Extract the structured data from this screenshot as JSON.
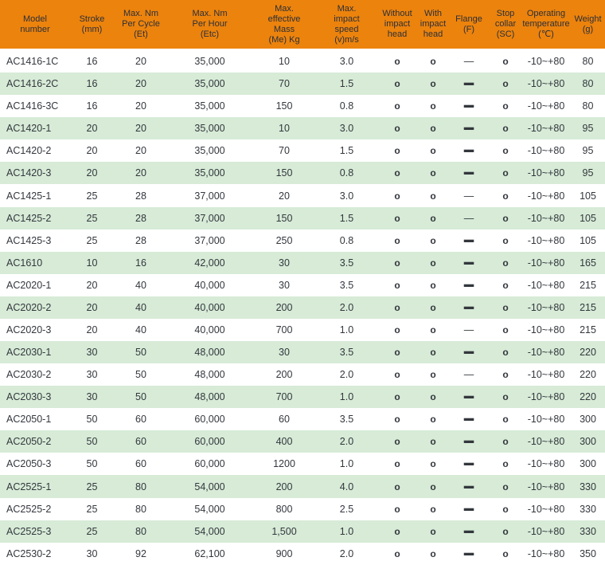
{
  "table": {
    "columns": [
      {
        "id": "model",
        "label": "Model\nnumber"
      },
      {
        "id": "stroke",
        "label": "Stroke\n(mm)"
      },
      {
        "id": "et",
        "label": "Max. Nm\nPer Cycle\n(Et)"
      },
      {
        "id": "etc",
        "label": "Max. Nm\nPer Hour\n(Etc)"
      },
      {
        "id": "me",
        "label": "Max.\neffective\nMass\n(Me) Kg"
      },
      {
        "id": "v",
        "label": "Max.\nimpact\nspeed\n(v)m/s"
      },
      {
        "id": "without",
        "label": "Without\nimpact\nhead"
      },
      {
        "id": "with",
        "label": "With\nimpact\nhead"
      },
      {
        "id": "flange",
        "label": "Flange\n(F)"
      },
      {
        "id": "sc",
        "label": "Stop\ncollar\n(SC)"
      },
      {
        "id": "temp",
        "label": "Operating\ntemperature\n(℃)"
      },
      {
        "id": "weight",
        "label": "Weight\n(g)"
      }
    ],
    "rows": [
      {
        "model": "AC1416-1C",
        "stroke": "16",
        "et": "20",
        "etc": "35,000",
        "me": "10",
        "v": "3.0",
        "without": "o",
        "with": "o",
        "flange": "—",
        "flange_bold": false,
        "sc": "o",
        "temp": "-10~+80",
        "weight": "80"
      },
      {
        "model": "AC1416-2C",
        "stroke": "16",
        "et": "20",
        "etc": "35,000",
        "me": "70",
        "v": "1.5",
        "without": "o",
        "with": "o",
        "flange": "—",
        "flange_bold": true,
        "sc": "o",
        "temp": "-10~+80",
        "weight": "80"
      },
      {
        "model": "AC1416-3C",
        "stroke": "16",
        "et": "20",
        "etc": "35,000",
        "me": "150",
        "v": "0.8",
        "without": "o",
        "with": "o",
        "flange": "—",
        "flange_bold": true,
        "sc": "o",
        "temp": "-10~+80",
        "weight": "80"
      },
      {
        "model": "AC1420-1",
        "stroke": "20",
        "et": "20",
        "etc": "35,000",
        "me": "10",
        "v": "3.0",
        "without": "o",
        "with": "o",
        "flange": "—",
        "flange_bold": true,
        "sc": "o",
        "temp": "-10~+80",
        "weight": "95"
      },
      {
        "model": "AC1420-2",
        "stroke": "20",
        "et": "20",
        "etc": "35,000",
        "me": "70",
        "v": "1.5",
        "without": "o",
        "with": "o",
        "flange": "—",
        "flange_bold": true,
        "sc": "o",
        "temp": "-10~+80",
        "weight": "95"
      },
      {
        "model": "AC1420-3",
        "stroke": "20",
        "et": "20",
        "etc": "35,000",
        "me": "150",
        "v": "0.8",
        "without": "o",
        "with": "o",
        "flange": "—",
        "flange_bold": true,
        "sc": "o",
        "temp": "-10~+80",
        "weight": "95"
      },
      {
        "model": "AC1425-1",
        "stroke": "25",
        "et": "28",
        "etc": "37,000",
        "me": "20",
        "v": "3.0",
        "without": "o",
        "with": "o",
        "flange": "—",
        "flange_bold": false,
        "sc": "o",
        "temp": "-10~+80",
        "weight": "105"
      },
      {
        "model": "AC1425-2",
        "stroke": "25",
        "et": "28",
        "etc": "37,000",
        "me": "150",
        "v": "1.5",
        "without": "o",
        "with": "o",
        "flange": "—",
        "flange_bold": false,
        "sc": "o",
        "temp": "-10~+80",
        "weight": "105"
      },
      {
        "model": "AC1425-3",
        "stroke": "25",
        "et": "28",
        "etc": "37,000",
        "me": "250",
        "v": "0.8",
        "without": "o",
        "with": "o",
        "flange": "—",
        "flange_bold": true,
        "sc": "o",
        "temp": "-10~+80",
        "weight": "105"
      },
      {
        "model": "AC1610",
        "stroke": "10",
        "et": "16",
        "etc": "42,000",
        "me": "30",
        "v": "3.5",
        "without": "o",
        "with": "o",
        "flange": "—",
        "flange_bold": true,
        "sc": "o",
        "temp": "-10~+80",
        "weight": "165"
      },
      {
        "model": "AC2020-1",
        "stroke": "20",
        "et": "40",
        "etc": "40,000",
        "me": "30",
        "v": "3.5",
        "without": "o",
        "with": "o",
        "flange": "—",
        "flange_bold": true,
        "sc": "o",
        "temp": "-10~+80",
        "weight": "215"
      },
      {
        "model": "AC2020-2",
        "stroke": "20",
        "et": "40",
        "etc": "40,000",
        "me": "200",
        "v": "2.0",
        "without": "o",
        "with": "o",
        "flange": "—",
        "flange_bold": true,
        "sc": "o",
        "temp": "-10~+80",
        "weight": "215"
      },
      {
        "model": "AC2020-3",
        "stroke": "20",
        "et": "40",
        "etc": "40,000",
        "me": "700",
        "v": "1.0",
        "without": "o",
        "with": "o",
        "flange": "—",
        "flange_bold": false,
        "sc": "o",
        "temp": "-10~+80",
        "weight": "215"
      },
      {
        "model": "AC2030-1",
        "stroke": "30",
        "et": "50",
        "etc": "48,000",
        "me": "30",
        "v": "3.5",
        "without": "o",
        "with": "o",
        "flange": "—",
        "flange_bold": true,
        "sc": "o",
        "temp": "-10~+80",
        "weight": "220"
      },
      {
        "model": "AC2030-2",
        "stroke": "30",
        "et": "50",
        "etc": "48,000",
        "me": "200",
        "v": "2.0",
        "without": "o",
        "with": "o",
        "flange": "—",
        "flange_bold": false,
        "sc": "o",
        "temp": "-10~+80",
        "weight": "220"
      },
      {
        "model": "AC2030-3",
        "stroke": "30",
        "et": "50",
        "etc": "48,000",
        "me": "700",
        "v": "1.0",
        "without": "o",
        "with": "o",
        "flange": "—",
        "flange_bold": true,
        "sc": "o",
        "temp": "-10~+80",
        "weight": "220"
      },
      {
        "model": "AC2050-1",
        "stroke": "50",
        "et": "60",
        "etc": "60,000",
        "me": "60",
        "v": "3.5",
        "without": "o",
        "with": "o",
        "flange": "—",
        "flange_bold": true,
        "sc": "o",
        "temp": "-10~+80",
        "weight": "300"
      },
      {
        "model": "AC2050-2",
        "stroke": "50",
        "et": "60",
        "etc": "60,000",
        "me": "400",
        "v": "2.0",
        "without": "o",
        "with": "o",
        "flange": "—",
        "flange_bold": true,
        "sc": "o",
        "temp": "-10~+80",
        "weight": "300"
      },
      {
        "model": "AC2050-3",
        "stroke": "50",
        "et": "60",
        "etc": "60,000",
        "me": "1200",
        "v": "1.0",
        "without": "o",
        "with": "o",
        "flange": "—",
        "flange_bold": true,
        "sc": "o",
        "temp": "-10~+80",
        "weight": "300"
      },
      {
        "model": "AC2525-1",
        "stroke": "25",
        "et": "80",
        "etc": "54,000",
        "me": "200",
        "v": "4.0",
        "without": "o",
        "with": "o",
        "flange": "—",
        "flange_bold": true,
        "sc": "o",
        "temp": "-10~+80",
        "weight": "330"
      },
      {
        "model": "AC2525-2",
        "stroke": "25",
        "et": "80",
        "etc": "54,000",
        "me": "800",
        "v": "2.5",
        "without": "o",
        "with": "o",
        "flange": "—",
        "flange_bold": true,
        "sc": "o",
        "temp": "-10~+80",
        "weight": "330"
      },
      {
        "model": "AC2525-3",
        "stroke": "25",
        "et": "80",
        "etc": "54,000",
        "me": "1,500",
        "v": "1.0",
        "without": "o",
        "with": "o",
        "flange": "—",
        "flange_bold": true,
        "sc": "o",
        "temp": "-10~+80",
        "weight": "330"
      },
      {
        "model": "AC2530-2",
        "stroke": "30",
        "et": "92",
        "etc": "62,100",
        "me": "900",
        "v": "2.0",
        "without": "o",
        "with": "o",
        "flange": "—",
        "flange_bold": true,
        "sc": "o",
        "temp": "-10~+80",
        "weight": "350"
      }
    ]
  },
  "colors": {
    "header_bg": "#ec830d",
    "row_alt_bg": "#d7ebd7",
    "header_text": "#2b2f38",
    "body_text": "#33373d"
  }
}
